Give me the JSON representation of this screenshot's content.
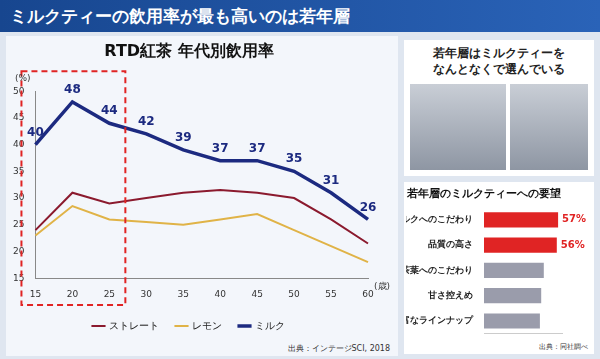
{
  "title": "ミルクティーの飲用率が最も高いのは若年層",
  "panel": {
    "caption": [
      "若年層はミルクティーを",
      "なんとなくで選んでいる"
    ]
  },
  "chart_data": [
    {
      "type": "line",
      "title": "RTD紅茶 年代別飲用率",
      "x_label": "(歳)",
      "y_label": "(%)",
      "categories": [
        "15",
        "20",
        "25",
        "30",
        "35",
        "40",
        "45",
        "50",
        "55",
        "60"
      ],
      "series": [
        {
          "name": "ストレート",
          "color": "#8b1a2e",
          "values": [
            24,
            31,
            29,
            30,
            31,
            31.5,
            31,
            30,
            26,
            21.5
          ]
        },
        {
          "name": "レモン",
          "color": "#e0b347",
          "values": [
            23,
            28.5,
            26,
            25.5,
            25,
            26,
            27,
            24,
            21,
            18
          ]
        },
        {
          "name": "ミルク",
          "color": "#1c2a80",
          "values": [
            40,
            48,
            44,
            42,
            39,
            37,
            37,
            35,
            31,
            26
          ],
          "data_labels": true
        }
      ],
      "ylim": [
        15,
        50
      ],
      "yticks": [
        15,
        20,
        25,
        30,
        35,
        40,
        45,
        50
      ],
      "grid": false,
      "legend": "bottom",
      "source": "出典：インテージSCI, 2018"
    },
    {
      "type": "bar",
      "orientation": "horizontal",
      "title": "若年層のミルクティーへの要望",
      "categories": [
        "ミルクへのこだわり",
        "品質の高さ",
        "茶葉へのこだわり",
        "甘さ控えめ",
        "豊富なラインナップ"
      ],
      "values": [
        57,
        56,
        46,
        44,
        43
      ],
      "value_labels": [
        "57%",
        "56%",
        null,
        null,
        null
      ],
      "data_labels": true,
      "colors": [
        "#e02424",
        "#e02424",
        "#9a9cab",
        "#9a9cab",
        "#9a9cab"
      ],
      "xlim": [
        0,
        60
      ],
      "tick_labels": "y",
      "grid": false,
      "source": "出典：同社調べ"
    }
  ]
}
